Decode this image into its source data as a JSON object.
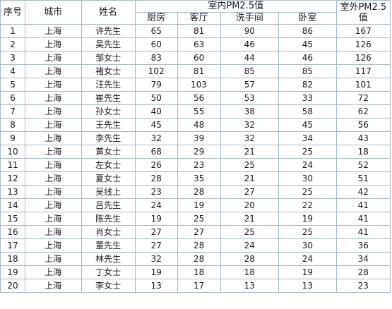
{
  "headers": {
    "seq": "序号",
    "city": "城市",
    "name": "姓名",
    "indoor": "室内PM2.5值",
    "outdoor_line1": "室外PM2.5",
    "outdoor_line2": "值",
    "kitchen": "厨房",
    "living": "客厅",
    "bathroom": "洗手间",
    "bedroom": "卧室"
  },
  "rows": [
    {
      "seq": "1",
      "city": "上海",
      "name": "许先生",
      "kitchen": "65",
      "living": "81",
      "bathroom": "90",
      "bedroom": "86",
      "outdoor": "167"
    },
    {
      "seq": "2",
      "city": "上海",
      "name": "吴先生",
      "kitchen": "60",
      "living": "63",
      "bathroom": "46",
      "bedroom": "45",
      "outdoor": "126"
    },
    {
      "seq": "3",
      "city": "上海",
      "name": "邹女士",
      "kitchen": "83",
      "living": "60",
      "bathroom": "44",
      "bedroom": "46",
      "outdoor": "126"
    },
    {
      "seq": "4",
      "city": "上海",
      "name": "褚女士",
      "kitchen": "102",
      "living": "81",
      "bathroom": "85",
      "bedroom": "85",
      "outdoor": "117"
    },
    {
      "seq": "5",
      "city": "上海",
      "name": "汪先生",
      "kitchen": "79",
      "living": "103",
      "bathroom": "57",
      "bedroom": "82",
      "outdoor": "101"
    },
    {
      "seq": "6",
      "city": "上海",
      "name": "崔先生",
      "kitchen": "50",
      "living": "56",
      "bathroom": "53",
      "bedroom": "33",
      "outdoor": "72"
    },
    {
      "seq": "7",
      "city": "上海",
      "name": "孙女士",
      "kitchen": "40",
      "living": "55",
      "bathroom": "38",
      "bedroom": "58",
      "outdoor": "62"
    },
    {
      "seq": "8",
      "city": "上海",
      "name": "王先生",
      "kitchen": "45",
      "living": "48",
      "bathroom": "32",
      "bedroom": "45",
      "outdoor": "56"
    },
    {
      "seq": "9",
      "city": "上海",
      "name": "李先生",
      "kitchen": "32",
      "living": "39",
      "bathroom": "32",
      "bedroom": "34",
      "outdoor": "43"
    },
    {
      "seq": "10",
      "city": "上海",
      "name": "黄女士",
      "kitchen": "68",
      "living": "29",
      "bathroom": "21",
      "bedroom": "25",
      "outdoor": "18"
    },
    {
      "seq": "11",
      "city": "上海",
      "name": "左女士",
      "kitchen": "26",
      "living": "23",
      "bathroom": "25",
      "bedroom": "24",
      "outdoor": "52"
    },
    {
      "seq": "12",
      "city": "上海",
      "name": "夏女士",
      "kitchen": "28",
      "living": "35",
      "bathroom": "21",
      "bedroom": "30",
      "outdoor": "51"
    },
    {
      "seq": "13",
      "city": "上海",
      "name": "吴线上",
      "kitchen": "23",
      "living": "28",
      "bathroom": "27",
      "bedroom": "25",
      "outdoor": "42"
    },
    {
      "seq": "14",
      "city": "上海",
      "name": "吕先生",
      "kitchen": "24",
      "living": "19",
      "bathroom": "20",
      "bedroom": "22",
      "outdoor": "41"
    },
    {
      "seq": "15",
      "city": "上海",
      "name": "陈先生",
      "kitchen": "19",
      "living": "25",
      "bathroom": "21",
      "bedroom": "19",
      "outdoor": "41"
    },
    {
      "seq": "16",
      "city": "上海",
      "name": "肖女士",
      "kitchen": "27",
      "living": "27",
      "bathroom": "25",
      "bedroom": "25",
      "outdoor": "41"
    },
    {
      "seq": "17",
      "city": "上海",
      "name": "董先生",
      "kitchen": "27",
      "living": "28",
      "bathroom": "24",
      "bedroom": "30",
      "outdoor": "36"
    },
    {
      "seq": "18",
      "city": "上海",
      "name": "林先生",
      "kitchen": "32",
      "living": "28",
      "bathroom": "28",
      "bedroom": "24",
      "outdoor": "34"
    },
    {
      "seq": "19",
      "city": "上海",
      "name": "丁女士",
      "kitchen": "19",
      "living": "18",
      "bathroom": "18",
      "bedroom": "19",
      "outdoor": "28"
    },
    {
      "seq": "20",
      "city": "上海",
      "name": "李女士",
      "kitchen": "13",
      "living": "17",
      "bathroom": "13",
      "bedroom": "13",
      "outdoor": "23"
    }
  ],
  "colors": {
    "border": "#a9b8c8",
    "text": "#1a1a1a",
    "background": "#ffffff"
  }
}
